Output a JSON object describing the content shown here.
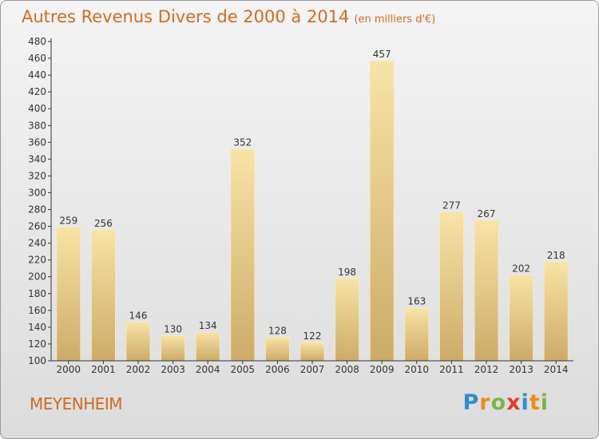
{
  "header": {
    "title": "Autres Revenus Divers de 2000 à 2014",
    "subtitle": "(en milliers d'€)"
  },
  "footer": {
    "place": "MEYENHEIM",
    "logo_letters": [
      "P",
      "r",
      "o",
      "x",
      "i",
      "t",
      "i"
    ],
    "logo_colors": [
      "#2a8fd1",
      "#f08a1c",
      "#7ab648",
      "#e23b2e",
      "#2a8fd1",
      "#f08a1c",
      "#7ab648"
    ]
  },
  "chart_data": {
    "type": "bar",
    "categories": [
      "2000",
      "2001",
      "2002",
      "2003",
      "2004",
      "2005",
      "2006",
      "2007",
      "2008",
      "2009",
      "2010",
      "2011",
      "2012",
      "2013",
      "2014"
    ],
    "values": [
      259,
      256,
      146,
      130,
      134,
      352,
      128,
      122,
      198,
      457,
      163,
      277,
      267,
      202,
      218
    ],
    "ylim": [
      100,
      480
    ],
    "ytick_step": 20,
    "grid": false,
    "colors": {
      "bar_light": "#f7e0a0",
      "bar_dark": "#cfae6a",
      "axis": "#333333"
    }
  }
}
